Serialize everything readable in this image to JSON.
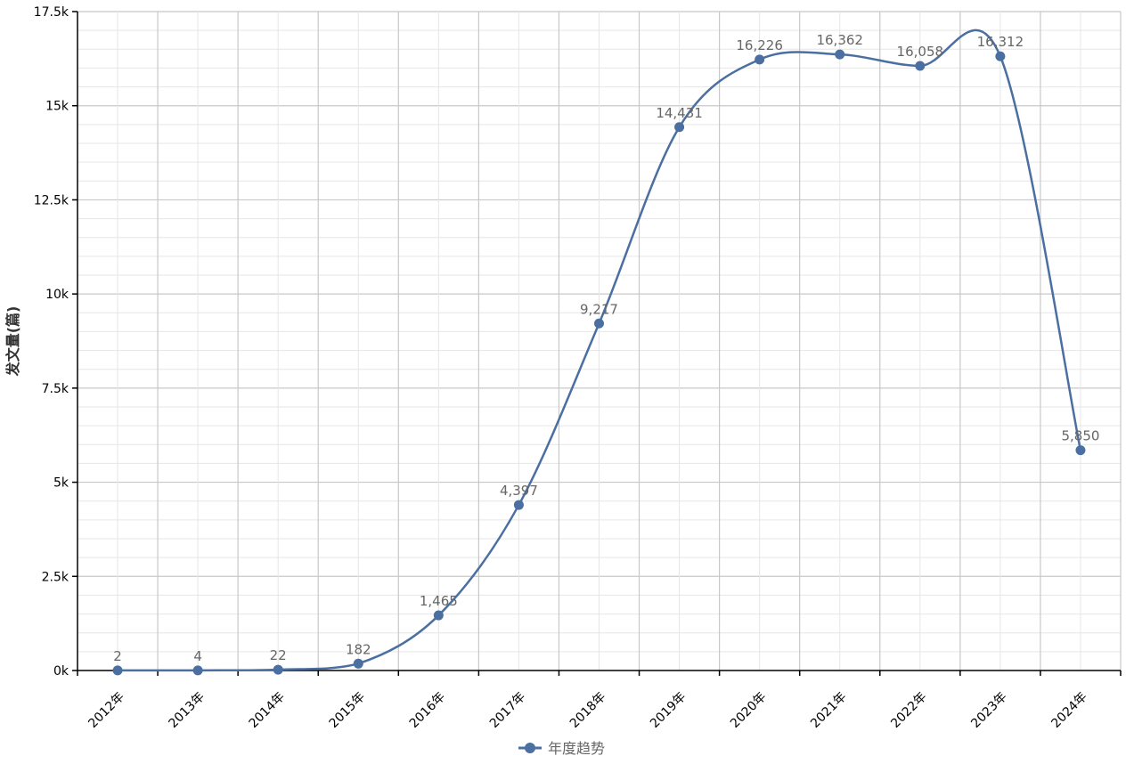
{
  "chart_data": {
    "type": "line",
    "categories": [
      "2012年",
      "2013年",
      "2014年",
      "2015年",
      "2016年",
      "2017年",
      "2018年",
      "2019年",
      "2020年",
      "2021年",
      "2022年",
      "2023年",
      "2024年"
    ],
    "series": [
      {
        "name": "年度趋势",
        "values": [
          2,
          4,
          22,
          182,
          1465,
          4397,
          9217,
          14431,
          16226,
          16362,
          16058,
          16312,
          5850
        ],
        "data_labels": [
          "2",
          "4",
          "22",
          "182",
          "1,465",
          "4,397",
          "9,217",
          "14,431",
          "16,226",
          "16,362",
          "16,058",
          "16,312",
          "5,850"
        ]
      }
    ],
    "xlabel": "",
    "ylabel": "发文量(篇)",
    "ylim": [
      0,
      17500
    ],
    "yticks": [
      0,
      2500,
      5000,
      7500,
      10000,
      12500,
      15000,
      17500
    ],
    "ytick_labels": [
      "0k",
      "2.5k",
      "5k",
      "7.5k",
      "10k",
      "12.5k",
      "15k",
      "17.5k"
    ],
    "grid": true,
    "smooth": true,
    "legend": "bottom-center",
    "colors": {
      "line": "#4a6fa0",
      "marker": "#4a6fa0",
      "data_label": "#666666",
      "grid_major": "#c8c8c8",
      "grid_minor": "#e6e6e6",
      "axis": "#000000"
    }
  }
}
